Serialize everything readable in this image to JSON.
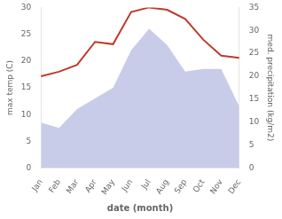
{
  "chart_data": {
    "type": "line",
    "xlabel": "date (month)",
    "ylabel": "max temp (C)",
    "y2label": "med. precipitation (kg/m2)",
    "categories": [
      "Jan",
      "Feb",
      "Mar",
      "Apr",
      "May",
      "Jun",
      "Jul",
      "Aug",
      "Sep",
      "Oct",
      "Nov",
      "Dec"
    ],
    "series": [
      {
        "type": "area",
        "color": "#c8cce8",
        "values": [
          8.5,
          7.5,
          11,
          13,
          15,
          22,
          26,
          23,
          18,
          18.5,
          18.5,
          11.5
        ]
      },
      {
        "type": "line",
        "color": "#c0392b",
        "axis": "y2",
        "values": [
          20,
          21,
          22.5,
          27.5,
          27,
          34,
          35,
          34.5,
          32.5,
          28,
          24.5,
          24
        ]
      }
    ],
    "ylim": [
      0,
      30
    ],
    "yticks": [
      0,
      5,
      10,
      15,
      20,
      25,
      30
    ],
    "y2lim": [
      0,
      35
    ],
    "y2ticks": [
      0,
      5,
      10,
      15,
      20,
      25,
      30,
      35
    ],
    "grid": false
  }
}
